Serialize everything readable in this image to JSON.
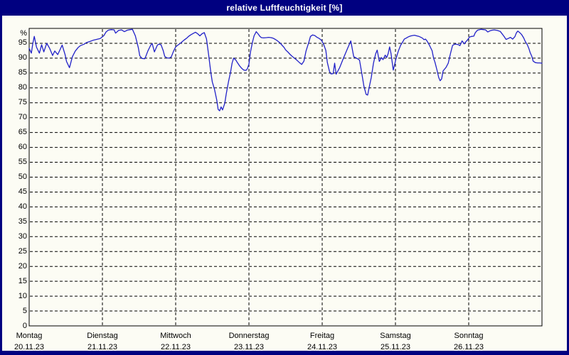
{
  "window": {
    "title": "relative Luftfeuchtigkeit [%]"
  },
  "colors": {
    "frame_navy": "#000080",
    "title_text": "#ffffff",
    "content_background": "#fcfcf4",
    "grid": "#000000",
    "axis_text": "#000000",
    "series_line": "#2121c8"
  },
  "chart_data": {
    "type": "line",
    "title": "relative Luftfeuchtigkeit [%]",
    "ylabel": "%",
    "ylim": [
      0,
      100
    ],
    "grid": "dashed horizontal every 5 units, dashed vertical at each day boundary, solid black plot frame",
    "legend_position": "none",
    "y_ticks": [
      {
        "label": "%",
        "value": 100
      },
      {
        "label": "95",
        "value": 95
      },
      {
        "label": "90",
        "value": 90
      },
      {
        "label": "85",
        "value": 85
      },
      {
        "label": "80",
        "value": 80
      },
      {
        "label": "75",
        "value": 75
      },
      {
        "label": "70",
        "value": 70
      },
      {
        "label": "65",
        "value": 65
      },
      {
        "label": "60",
        "value": 60
      },
      {
        "label": "55",
        "value": 55
      },
      {
        "label": "50",
        "value": 50
      },
      {
        "label": "45",
        "value": 45
      },
      {
        "label": "40",
        "value": 40
      },
      {
        "label": "35",
        "value": 35
      },
      {
        "label": "30",
        "value": 30
      },
      {
        "label": "25",
        "value": 25
      },
      {
        "label": "20",
        "value": 20
      },
      {
        "label": "15",
        "value": 15
      },
      {
        "label": "10",
        "value": 10
      },
      {
        "label": "5",
        "value": 5
      },
      {
        "label": "0",
        "value": 0
      }
    ],
    "x_days": [
      {
        "label": "Montag",
        "date": "20.11.23"
      },
      {
        "label": "Dienstag",
        "date": "21.11.23"
      },
      {
        "label": "Mittwoch",
        "date": "22.11.23"
      },
      {
        "label": "Donnerstag",
        "date": "23.11.23"
      },
      {
        "label": "Freitag",
        "date": "24.11.23"
      },
      {
        "label": "Samstag",
        "date": "25.11.23"
      },
      {
        "label": "Sonntag",
        "date": "26.11.23"
      }
    ],
    "x_unit": "days since Montag 20.11.23 00:00, range 0-7",
    "series": [
      {
        "name": "relative Luftfeuchtigkeit",
        "unit": "%",
        "color": "#2121c8",
        "points": [
          [
            0.0,
            93.3
          ],
          [
            0.03,
            91.7
          ],
          [
            0.05,
            94.9
          ],
          [
            0.07,
            97.3
          ],
          [
            0.1,
            93.7
          ],
          [
            0.14,
            91.7
          ],
          [
            0.17,
            94.5
          ],
          [
            0.2,
            92.1
          ],
          [
            0.24,
            95.0
          ],
          [
            0.28,
            93.3
          ],
          [
            0.32,
            90.9
          ],
          [
            0.35,
            92.4
          ],
          [
            0.39,
            91.2
          ],
          [
            0.45,
            94.4
          ],
          [
            0.49,
            91.2
          ],
          [
            0.51,
            88.9
          ],
          [
            0.55,
            86.8
          ],
          [
            0.59,
            90.5
          ],
          [
            0.63,
            92.4
          ],
          [
            0.67,
            93.6
          ],
          [
            0.7,
            94.2
          ],
          [
            0.75,
            94.7
          ],
          [
            0.78,
            95.2
          ],
          [
            0.83,
            95.6
          ],
          [
            0.87,
            96.0
          ],
          [
            0.92,
            96.3
          ],
          [
            0.97,
            96.6
          ],
          [
            1.02,
            97.6
          ],
          [
            1.05,
            98.8
          ],
          [
            1.08,
            99.4
          ],
          [
            1.12,
            99.6
          ],
          [
            1.16,
            99.5
          ],
          [
            1.18,
            98.4
          ],
          [
            1.22,
            99.3
          ],
          [
            1.26,
            99.5
          ],
          [
            1.3,
            98.9
          ],
          [
            1.34,
            99.4
          ],
          [
            1.38,
            99.6
          ],
          [
            1.41,
            99.7
          ],
          [
            1.45,
            97.5
          ],
          [
            1.49,
            93.5
          ],
          [
            1.51,
            90.8
          ],
          [
            1.54,
            89.9
          ],
          [
            1.58,
            89.8
          ],
          [
            1.62,
            92.4
          ],
          [
            1.66,
            94.4
          ],
          [
            1.68,
            94.9
          ],
          [
            1.71,
            92.1
          ],
          [
            1.75,
            94.4
          ],
          [
            1.77,
            94.7
          ],
          [
            1.8,
            94.5
          ],
          [
            1.83,
            92.5
          ],
          [
            1.85,
            90.6
          ],
          [
            1.88,
            90.1
          ],
          [
            1.91,
            90.0
          ],
          [
            1.94,
            90.4
          ],
          [
            1.97,
            92.3
          ],
          [
            2.0,
            93.8
          ],
          [
            2.03,
            94.4
          ],
          [
            2.07,
            95.1
          ],
          [
            2.11,
            96.0
          ],
          [
            2.15,
            96.7
          ],
          [
            2.18,
            97.4
          ],
          [
            2.21,
            97.9
          ],
          [
            2.24,
            98.3
          ],
          [
            2.27,
            98.7
          ],
          [
            2.3,
            98.2
          ],
          [
            2.33,
            97.5
          ],
          [
            2.36,
            98.2
          ],
          [
            2.39,
            98.6
          ],
          [
            2.42,
            96.5
          ],
          [
            2.45,
            91.0
          ],
          [
            2.48,
            85.2
          ],
          [
            2.5,
            82.0
          ],
          [
            2.53,
            79.5
          ],
          [
            2.56,
            76.0
          ],
          [
            2.58,
            72.8
          ],
          [
            2.6,
            72.3
          ],
          [
            2.62,
            73.6
          ],
          [
            2.64,
            72.6
          ],
          [
            2.67,
            74.8
          ],
          [
            2.69,
            78.0
          ],
          [
            2.72,
            82.0
          ],
          [
            2.75,
            85.5
          ],
          [
            2.77,
            88.3
          ],
          [
            2.79,
            90.0
          ],
          [
            2.82,
            89.4
          ],
          [
            2.84,
            88.6
          ],
          [
            2.87,
            87.5
          ],
          [
            2.9,
            86.6
          ],
          [
            2.93,
            86.0
          ],
          [
            2.96,
            85.9
          ],
          [
            2.98,
            86.5
          ],
          [
            3.0,
            88.0
          ],
          [
            3.02,
            92.0
          ],
          [
            3.05,
            95.5
          ],
          [
            3.07,
            97.5
          ],
          [
            3.1,
            98.9
          ],
          [
            3.13,
            98.0
          ],
          [
            3.15,
            97.3
          ],
          [
            3.17,
            96.9
          ],
          [
            3.2,
            96.8
          ],
          [
            3.24,
            96.9
          ],
          [
            3.27,
            97.0
          ],
          [
            3.3,
            96.9
          ],
          [
            3.33,
            96.7
          ],
          [
            3.36,
            96.3
          ],
          [
            3.39,
            95.8
          ],
          [
            3.42,
            95.2
          ],
          [
            3.45,
            94.4
          ],
          [
            3.48,
            93.6
          ],
          [
            3.5,
            92.8
          ],
          [
            3.53,
            92.1
          ],
          [
            3.56,
            91.3
          ],
          [
            3.59,
            90.6
          ],
          [
            3.62,
            90.0
          ],
          [
            3.66,
            89.2
          ],
          [
            3.69,
            88.5
          ],
          [
            3.72,
            87.9
          ],
          [
            3.75,
            89.0
          ],
          [
            3.78,
            92.4
          ],
          [
            3.82,
            95.6
          ],
          [
            3.84,
            97.3
          ],
          [
            3.87,
            97.8
          ],
          [
            3.9,
            97.6
          ],
          [
            3.93,
            97.0
          ],
          [
            3.96,
            96.6
          ],
          [
            3.99,
            96.0
          ],
          [
            4.02,
            94.6
          ],
          [
            4.05,
            92.6
          ],
          [
            4.07,
            88.6
          ],
          [
            4.1,
            85.5
          ],
          [
            4.12,
            84.7
          ],
          [
            4.15,
            84.8
          ],
          [
            4.17,
            88.3
          ],
          [
            4.19,
            84.6
          ],
          [
            4.24,
            86.9
          ],
          [
            4.29,
            90.0
          ],
          [
            4.34,
            92.9
          ],
          [
            4.39,
            95.8
          ],
          [
            4.43,
            90.5
          ],
          [
            4.46,
            90.1
          ],
          [
            4.49,
            89.7
          ],
          [
            4.51,
            89.3
          ],
          [
            4.54,
            85.0
          ],
          [
            4.57,
            80.5
          ],
          [
            4.6,
            77.8
          ],
          [
            4.62,
            77.6
          ],
          [
            4.64,
            80.0
          ],
          [
            4.67,
            83.5
          ],
          [
            4.7,
            88.3
          ],
          [
            4.73,
            91.5
          ],
          [
            4.75,
            92.7
          ],
          [
            4.78,
            88.9
          ],
          [
            4.81,
            90.2
          ],
          [
            4.83,
            89.5
          ],
          [
            4.86,
            91.0
          ],
          [
            4.88,
            90.2
          ],
          [
            4.9,
            91.5
          ],
          [
            4.92,
            93.8
          ],
          [
            4.94,
            91.5
          ],
          [
            4.97,
            86.0
          ],
          [
            4.99,
            88.0
          ],
          [
            5.01,
            90.0
          ],
          [
            5.04,
            92.4
          ],
          [
            5.07,
            94.3
          ],
          [
            5.1,
            95.5
          ],
          [
            5.12,
            96.4
          ],
          [
            5.15,
            96.8
          ],
          [
            5.17,
            97.1
          ],
          [
            5.2,
            97.4
          ],
          [
            5.23,
            97.6
          ],
          [
            5.26,
            97.7
          ],
          [
            5.29,
            97.5
          ],
          [
            5.32,
            97.3
          ],
          [
            5.34,
            97.1
          ],
          [
            5.37,
            96.7
          ],
          [
            5.39,
            96.2
          ],
          [
            5.41,
            96.4
          ],
          [
            5.43,
            95.8
          ],
          [
            5.46,
            94.5
          ],
          [
            5.5,
            92.5
          ],
          [
            5.52,
            90.0
          ],
          [
            5.54,
            88.6
          ],
          [
            5.57,
            85.7
          ],
          [
            5.59,
            83.5
          ],
          [
            5.61,
            82.4
          ],
          [
            5.63,
            83.0
          ],
          [
            5.65,
            85.7
          ],
          [
            5.69,
            86.9
          ],
          [
            5.72,
            88.3
          ],
          [
            5.75,
            91.5
          ],
          [
            5.78,
            94.3
          ],
          [
            5.81,
            94.7
          ],
          [
            5.83,
            94.7
          ],
          [
            5.86,
            94.5
          ],
          [
            5.88,
            94.2
          ],
          [
            5.91,
            95.8
          ],
          [
            5.94,
            94.8
          ],
          [
            5.96,
            95.5
          ],
          [
            5.99,
            96.3
          ],
          [
            6.01,
            97.1
          ],
          [
            6.04,
            97.3
          ],
          [
            6.07,
            97.4
          ],
          [
            6.09,
            98.6
          ],
          [
            6.12,
            99.4
          ],
          [
            6.15,
            99.6
          ],
          [
            6.17,
            99.7
          ],
          [
            6.2,
            99.6
          ],
          [
            6.23,
            99.5
          ],
          [
            6.26,
            98.8
          ],
          [
            6.29,
            99.2
          ],
          [
            6.32,
            99.4
          ],
          [
            6.35,
            99.5
          ],
          [
            6.39,
            99.3
          ],
          [
            6.43,
            99.0
          ],
          [
            6.48,
            97.4
          ],
          [
            6.51,
            96.3
          ],
          [
            6.54,
            96.6
          ],
          [
            6.57,
            97.0
          ],
          [
            6.6,
            96.4
          ],
          [
            6.63,
            97.2
          ],
          [
            6.65,
            98.5
          ],
          [
            6.67,
            99.1
          ],
          [
            6.7,
            98.5
          ],
          [
            6.72,
            98.0
          ],
          [
            6.75,
            96.8
          ],
          [
            6.77,
            95.7
          ],
          [
            6.8,
            94.5
          ],
          [
            6.82,
            93.3
          ],
          [
            6.84,
            91.8
          ],
          [
            6.86,
            90.7
          ],
          [
            6.88,
            89.0
          ],
          [
            6.91,
            88.5
          ],
          [
            6.94,
            88.4
          ],
          [
            6.97,
            88.4
          ],
          [
            7.0,
            88.3
          ]
        ]
      }
    ]
  }
}
